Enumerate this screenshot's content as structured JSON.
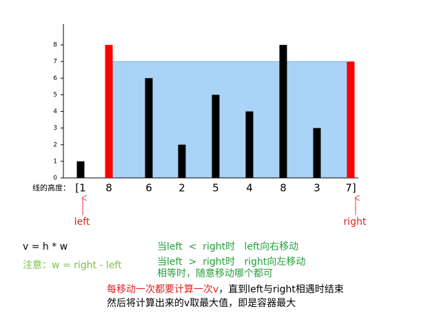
{
  "chart_data": {
    "type": "bar",
    "categories": [
      "[1",
      "8",
      "6",
      "2",
      "5",
      "4",
      "8",
      "3",
      "7]"
    ],
    "values": [
      1,
      8,
      6,
      2,
      5,
      4,
      8,
      3,
      7
    ],
    "colors": [
      "#000000",
      "#ff0000",
      "#000000",
      "#000000",
      "#000000",
      "#000000",
      "#000000",
      "#000000",
      "#ff0000"
    ],
    "ylim": [
      0,
      9.25
    ],
    "yticks": [
      0,
      1,
      2,
      3,
      4,
      5,
      6,
      7,
      8
    ],
    "x_label": "线的高度：",
    "water_level": 7,
    "water_color": "#a9d3f7",
    "pointer_left": "left",
    "pointer_right": "right",
    "formula": "v = h * w",
    "note_width": "注意：w = right  -  left",
    "rules": [
      "当left  <  right时   left向右移动",
      "当left  >  right时   right向左移动",
      "相等时，随意移动哪个都可"
    ],
    "summary_red": "每移动一次都要计算一次v",
    "summary_rest": "，直到left与right相遇时结束",
    "summary_2": "然后将计算出来的v取最大值，即是容器最大"
  }
}
